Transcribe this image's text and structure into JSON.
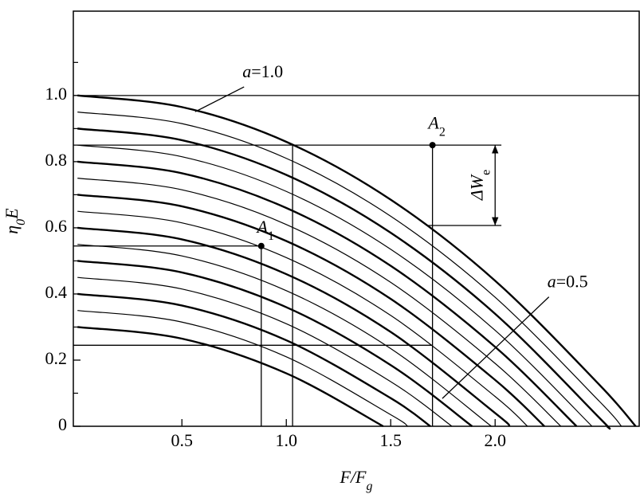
{
  "chart_data": {
    "type": "line",
    "xlabel": {
      "parts": [
        {
          "text": "F/F"
        },
        {
          "text": "g",
          "sub": true
        }
      ]
    },
    "ylabel": {
      "parts": [
        {
          "text": "η"
        },
        {
          "text": "0",
          "sub": true
        },
        {
          "text": "E"
        }
      ]
    },
    "xlim": [
      -0.02,
      2.69
    ],
    "ylim": [
      0,
      1.255
    ],
    "xticks": [
      0.5,
      {
        "value": 1,
        "label": "1.0"
      },
      1.5,
      {
        "value": 2,
        "label": "2.0"
      }
    ],
    "yticks": [
      0,
      0.2,
      0.4,
      0.6,
      0.8,
      {
        "value": 1,
        "label": "1.0"
      }
    ],
    "yminor_ticks": [
      0.1,
      0.3,
      0.5,
      0.7,
      0.9,
      1.1
    ],
    "grid": false,
    "series": [
      {
        "color": "#000",
        "linewidth": 2.4,
        "x": [
          0,
          0.5,
          1,
          1.5,
          2,
          2.5,
          2.673
        ],
        "values": [
          1,
          0.965,
          0.86,
          0.685,
          0.44,
          0.125,
          0
        ]
      },
      {
        "color": "#000",
        "linewidth": 1.2,
        "x": [
          0,
          0.5,
          1,
          1.5,
          2,
          2.5,
          2.605
        ],
        "values": [
          0.95,
          0.915,
          0.81,
          0.635,
          0.39,
          0.075,
          0
        ]
      },
      {
        "color": "#000",
        "linewidth": 2.4,
        "x": [
          0,
          0.5,
          1,
          1.5,
          2,
          2.5,
          2.535
        ],
        "values": [
          0.9,
          0.865,
          0.76,
          0.585,
          0.34,
          0.025,
          0
        ]
      },
      {
        "color": "#000",
        "linewidth": 1.2,
        "x": [
          0,
          0.5,
          1,
          1.5,
          2,
          2.464
        ],
        "values": [
          0.85,
          0.815,
          0.71,
          0.535,
          0.29,
          0
        ]
      },
      {
        "color": "#000",
        "linewidth": 2.4,
        "x": [
          0,
          0.5,
          1,
          1.5,
          2,
          2.39
        ],
        "values": [
          0.8,
          0.765,
          0.66,
          0.485,
          0.24,
          0
        ]
      },
      {
        "color": "#000",
        "linewidth": 1.2,
        "x": [
          0,
          0.5,
          1,
          1.5,
          2,
          2.315
        ],
        "values": [
          0.75,
          0.715,
          0.61,
          0.435,
          0.19,
          0
        ]
      },
      {
        "color": "#000",
        "linewidth": 2.4,
        "x": [
          0,
          0.5,
          1,
          1.5,
          2,
          2.236
        ],
        "values": [
          0.7,
          0.665,
          0.56,
          0.385,
          0.14,
          0
        ]
      },
      {
        "color": "#000",
        "linewidth": 1.2,
        "x": [
          0,
          0.5,
          1,
          1.5,
          2,
          2.155
        ],
        "values": [
          0.65,
          0.615,
          0.51,
          0.335,
          0.09,
          0
        ]
      },
      {
        "color": "#000",
        "linewidth": 2.4,
        "x": [
          0,
          0.5,
          1,
          1.5,
          2,
          2.07
        ],
        "values": [
          0.6,
          0.565,
          0.46,
          0.285,
          0.04,
          0
        ]
      },
      {
        "color": "#000",
        "linewidth": 1.2,
        "x": [
          0,
          0.5,
          1,
          1.5,
          1.982
        ],
        "values": [
          0.55,
          0.515,
          0.41,
          0.235,
          0
        ]
      },
      {
        "color": "#000",
        "linewidth": 2.4,
        "x": [
          0,
          0.5,
          1,
          1.5,
          1.89
        ],
        "values": [
          0.5,
          0.465,
          0.36,
          0.185,
          0
        ]
      },
      {
        "color": "#000",
        "linewidth": 1.2,
        "x": [
          0,
          0.5,
          1,
          1.5,
          1.793
        ],
        "values": [
          0.45,
          0.415,
          0.31,
          0.135,
          0
        ]
      },
      {
        "color": "#000",
        "linewidth": 2.4,
        "x": [
          0,
          0.5,
          1,
          1.5,
          1.69
        ],
        "values": [
          0.4,
          0.365,
          0.26,
          0.085,
          0
        ]
      },
      {
        "color": "#000",
        "linewidth": 1.2,
        "x": [
          0,
          0.5,
          1,
          1.5,
          1.581
        ],
        "values": [
          0.35,
          0.315,
          0.21,
          0.035,
          0
        ]
      },
      {
        "color": "#000",
        "linewidth": 2.4,
        "x": [
          0,
          0.5,
          1,
          1.464
        ],
        "values": [
          0.3,
          0.265,
          0.16,
          0
        ]
      }
    ],
    "reference_lines": [
      {
        "x": [
          -0.02,
          2.69
        ],
        "y": [
          1,
          1
        ]
      },
      {
        "x": [
          -0.02,
          2.03
        ],
        "y": [
          0.85,
          0.85
        ]
      },
      {
        "x": [
          1.03,
          1.03
        ],
        "y": [
          0.85,
          0
        ]
      },
      {
        "x": [
          1.7,
          1.7
        ],
        "y": [
          0.85,
          0
        ]
      },
      {
        "x": [
          -0.02,
          0.88
        ],
        "y": [
          0.545,
          0.545
        ]
      },
      {
        "x": [
          0.88,
          0.88
        ],
        "y": [
          0.545,
          0
        ]
      },
      {
        "x": [
          -0.02,
          1.7
        ],
        "y": [
          0.245,
          0.245
        ]
      },
      {
        "x": [
          1.68,
          2.03
        ],
        "y": [
          0.607,
          0.607
        ]
      }
    ],
    "points": [
      {
        "x": 0.88,
        "y": 0.545
      },
      {
        "x": 1.7,
        "y": 0.85
      }
    ],
    "annotations": [
      {
        "parts": [
          {
            "text": "a"
          },
          {
            "text": "=1.0",
            "upright": true
          }
        ],
        "x": 0.79,
        "y": 1.055,
        "arrow_to": [
          0.564,
          0.951
        ]
      },
      {
        "parts": [
          {
            "text": "a"
          },
          {
            "text": "=0.5",
            "upright": true
          }
        ],
        "x": 2.25,
        "y": 0.42,
        "arrow_to": [
          1.747,
          0.084
        ]
      },
      {
        "parts": [
          {
            "text": "A"
          },
          {
            "text": "1",
            "sub": true,
            "upright": true
          }
        ],
        "x": 0.86,
        "y": 0.585
      },
      {
        "parts": [
          {
            "text": "A"
          },
          {
            "text": "2",
            "sub": true,
            "upright": true
          }
        ],
        "x": 1.68,
        "y": 0.9
      },
      {
        "parts": [
          {
            "text": "ΔW"
          },
          {
            "text": "e",
            "sub": true,
            "upright": true
          }
        ],
        "x": 1.94,
        "y": 0.73,
        "rotate": true,
        "span": {
          "x": 2.0,
          "y": [
            0.607,
            0.85
          ]
        }
      }
    ]
  }
}
